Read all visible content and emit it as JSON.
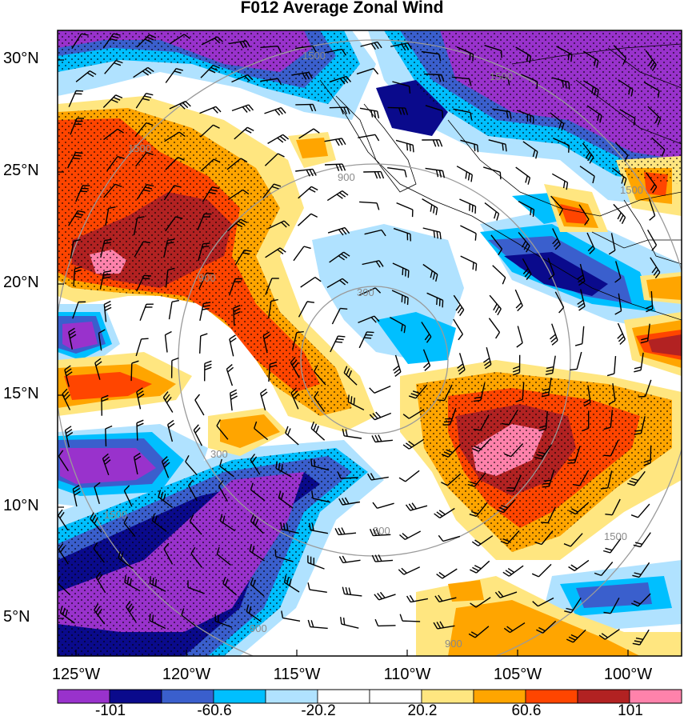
{
  "title": "F012 Average Zonal Wind",
  "map": {
    "lat_labels": [
      "30°N",
      "25°N",
      "20°N",
      "15°N",
      "10°N",
      "5°N"
    ],
    "lon_labels": [
      "125°W",
      "120°W",
      "115°W",
      "110°W",
      "105°W",
      "100°W"
    ],
    "contour_labels": [
      "1500",
      "1500",
      "1500",
      "1500",
      "1500",
      "1500",
      "900",
      "900",
      "900",
      "900",
      "300",
      "300",
      "300"
    ],
    "colorbar": {
      "colors": [
        "#9932cc",
        "#0a0a8c",
        "#3a5fcd",
        "#00bfff",
        "#b0e2ff",
        "#ffffff",
        "#ffffff",
        "#ffe680",
        "#ffa500",
        "#ff4500",
        "#b22222",
        "#ff82ab"
      ],
      "labels": [
        "-101",
        "-60.6",
        "-20.2",
        "20.2",
        "60.6",
        "101"
      ]
    }
  },
  "colors": {
    "strong_easterly": "#9932cc",
    "easterly": "#0a0a8c",
    "westerly": "#ff4500",
    "strong_westerly": "#ff82ab",
    "contour": "#9a9a9a"
  }
}
